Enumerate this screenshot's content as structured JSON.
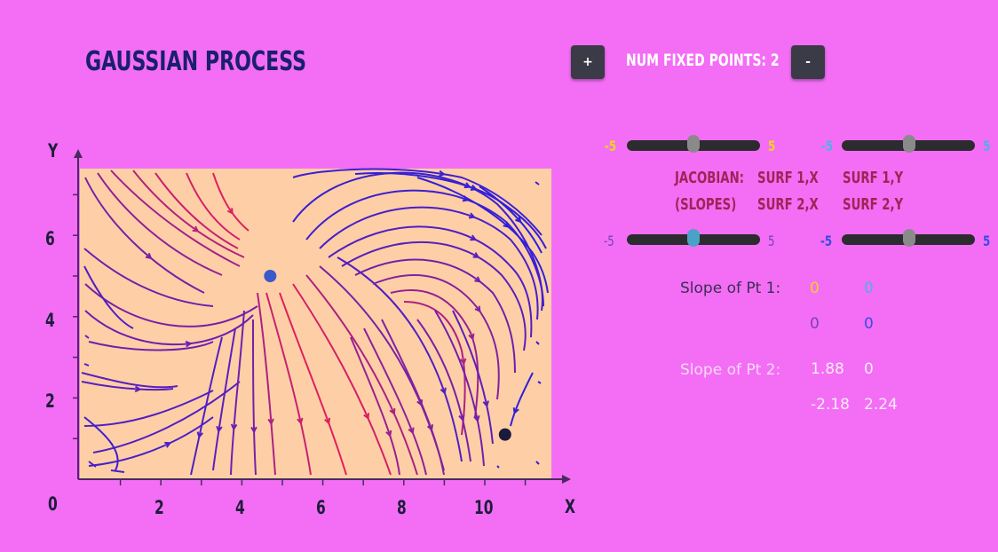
{
  "title": "GAUSSIAN PROCESS",
  "controls": {
    "plus_label": "+",
    "minus_label": "-",
    "fixed_points_label": "NUM FIXED POINTS: 2"
  },
  "sliders": {
    "surf1x": {
      "min": "-5",
      "max": "5",
      "value": 0
    },
    "surf1y": {
      "min": "-5",
      "max": "5",
      "value": 0
    },
    "surf2x": {
      "min": "-5",
      "max": "5",
      "value": 0
    },
    "surf2y": {
      "min": "-5",
      "max": "5",
      "value": 0
    }
  },
  "jacobian": {
    "line1_label": "JACOBIAN:",
    "line2_label": "(SLOPES)",
    "surf1x": "SURF 1,X",
    "surf1y": "SURF 1,Y",
    "surf2x": "SURF 2,X",
    "surf2y": "SURF 2,Y"
  },
  "slopes": {
    "pt1": {
      "label": "Slope of Pt 1:",
      "a": "0",
      "b": "0",
      "c": "0",
      "d": "0"
    },
    "pt2": {
      "label": "Slope of Pt 2:",
      "a": "1.88",
      "b": "0",
      "c": "-2.18",
      "d": "2.24"
    }
  },
  "colors": {
    "background": "#f36ef5",
    "plot_area": "#fecfa6",
    "title": "#1a1f6e",
    "jacobian_text": "#a02357",
    "slider_track": "#2c2c30",
    "stream_red": "#e8205a",
    "stream_blue": "#1f1fe6",
    "slider_min_colors": [
      "#f2d21a",
      "#4fb0e6",
      "#7a3fb4",
      "#3a4de0"
    ]
  },
  "chart_data": {
    "type": "streamplot",
    "xlabel": "X",
    "ylabel": "Y",
    "xlim": [
      0,
      12
    ],
    "ylim": [
      0,
      7.8
    ],
    "x_ticks": [
      "2",
      "4",
      "6",
      "8",
      "10"
    ],
    "y_ticks": [
      "2",
      "4",
      "6"
    ],
    "origin_label": "0",
    "fixed_points": [
      {
        "x": 4.7,
        "y": 5.0
      },
      {
        "x": 10.5,
        "y": 1.1
      }
    ]
  }
}
